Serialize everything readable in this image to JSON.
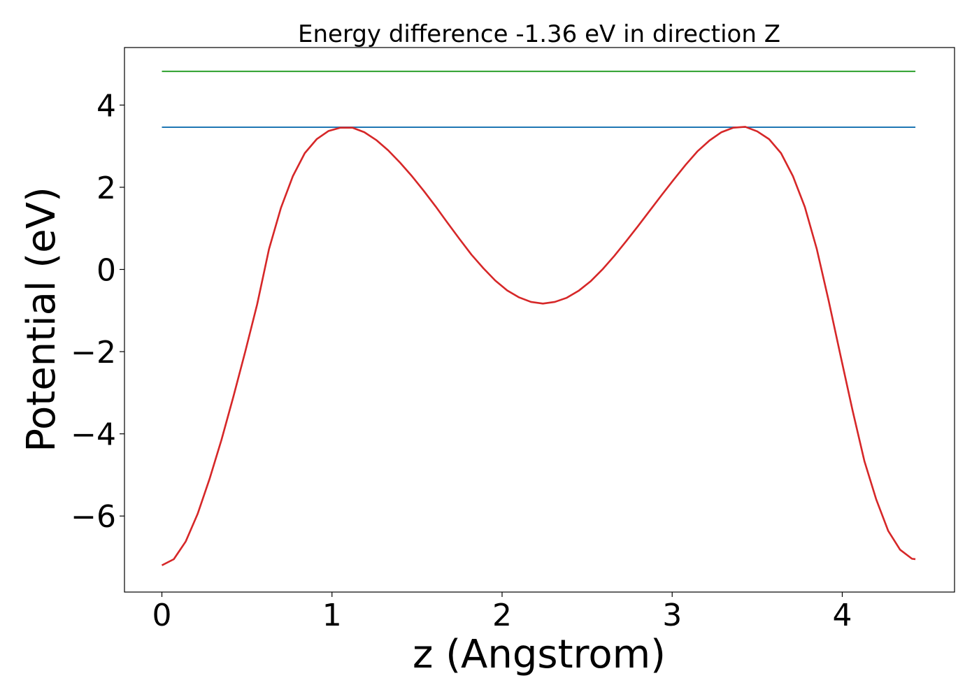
{
  "chart_data": {
    "type": "line",
    "title": "Energy difference -1.36 eV in direction Z",
    "xlabel": "z (Angstrom)",
    "ylabel": "Potential (eV)",
    "xlim": [
      -0.22,
      4.66
    ],
    "ylim": [
      -7.85,
      5.4
    ],
    "xticks": [
      {
        "value": 0,
        "label": "0"
      },
      {
        "value": 1,
        "label": "1"
      },
      {
        "value": 2,
        "label": "2"
      },
      {
        "value": 3,
        "label": "3"
      },
      {
        "value": 4,
        "label": "4"
      }
    ],
    "yticks": [
      {
        "value": -6,
        "label": "−6"
      },
      {
        "value": -4,
        "label": "−4"
      },
      {
        "value": -2,
        "label": "−2"
      },
      {
        "value": 0,
        "label": "0"
      },
      {
        "value": 2,
        "label": "2"
      },
      {
        "value": 4,
        "label": "4"
      }
    ],
    "grid": false,
    "series": [
      {
        "color": "#d62728",
        "x": [
          0.0,
          0.07,
          0.14,
          0.21,
          0.28,
          0.35,
          0.42,
          0.49,
          0.56,
          0.63,
          0.7,
          0.77,
          0.84,
          0.91,
          0.98,
          1.05,
          1.12,
          1.19,
          1.26,
          1.33,
          1.4,
          1.47,
          1.54,
          1.61,
          1.68,
          1.75,
          1.82,
          1.89,
          1.96,
          2.03,
          2.1,
          2.17,
          2.24,
          2.31,
          2.38,
          2.45,
          2.52,
          2.59,
          2.66,
          2.73,
          2.8,
          2.87,
          2.94,
          3.01,
          3.08,
          3.15,
          3.22,
          3.29,
          3.36,
          3.43,
          3.5,
          3.57,
          3.64,
          3.71,
          3.78,
          3.85,
          3.92,
          3.99,
          4.06,
          4.13,
          4.2,
          4.27,
          4.34,
          4.41,
          4.43
        ],
        "y": [
          -7.2,
          -7.05,
          -6.62,
          -5.95,
          -5.1,
          -4.15,
          -3.1,
          -2.0,
          -0.85,
          0.5,
          1.5,
          2.27,
          2.83,
          3.17,
          3.37,
          3.45,
          3.45,
          3.34,
          3.15,
          2.9,
          2.6,
          2.27,
          1.91,
          1.53,
          1.13,
          0.74,
          0.36,
          0.03,
          -0.27,
          -0.51,
          -0.68,
          -0.79,
          -0.83,
          -0.79,
          -0.69,
          -0.52,
          -0.29,
          0.0,
          0.33,
          0.69,
          1.06,
          1.44,
          1.82,
          2.19,
          2.55,
          2.88,
          3.14,
          3.34,
          3.45,
          3.47,
          3.36,
          3.17,
          2.83,
          2.27,
          1.52,
          0.5,
          -0.76,
          -2.1,
          -3.42,
          -4.66,
          -5.6,
          -6.36,
          -6.82,
          -7.04,
          -7.05
        ]
      },
      {
        "color": "#1f77b4",
        "x": [
          0.0,
          4.43
        ],
        "y": [
          3.46,
          3.46
        ]
      },
      {
        "color": "#2ca02c",
        "x": [
          0.0,
          4.43
        ],
        "y": [
          4.82,
          4.82
        ]
      }
    ]
  }
}
